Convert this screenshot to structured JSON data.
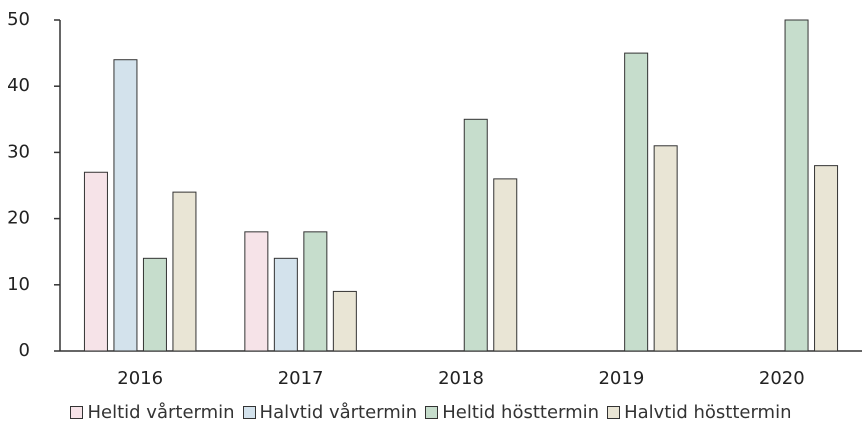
{
  "chart_data": {
    "type": "bar",
    "categories": [
      "2016",
      "2017",
      "2018",
      "2019",
      "2020"
    ],
    "series": [
      {
        "name": "Heltid vårtermin",
        "color": "#f6e3e8",
        "values": [
          27,
          18,
          null,
          null,
          null
        ]
      },
      {
        "name": "Halvtid vårtermin",
        "color": "#d3e2ec",
        "values": [
          44,
          14,
          null,
          null,
          null
        ]
      },
      {
        "name": "Heltid hösttermin",
        "color": "#c6ddcc",
        "values": [
          14,
          18,
          35,
          45,
          50
        ]
      },
      {
        "name": "Halvtid hösttermin",
        "color": "#e9e5d5",
        "values": [
          24,
          9,
          26,
          31,
          28
        ]
      }
    ],
    "ylim": [
      0,
      50
    ],
    "yticks": [
      0,
      10,
      20,
      30,
      40,
      50
    ],
    "legend": "bottom"
  }
}
